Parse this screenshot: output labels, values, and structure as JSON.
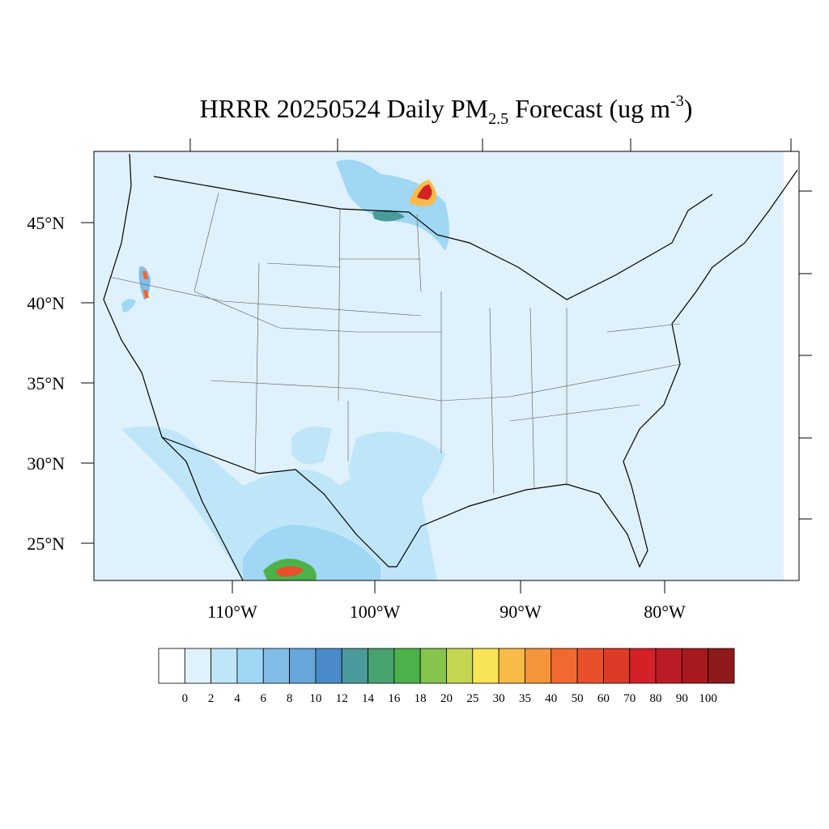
{
  "title": {
    "main": "HRRR 20250524 Daily PM",
    "subscript": "2.5",
    "middle": " Forecast (ug m",
    "superscript": "-3",
    "end": ")"
  },
  "latitude_labels": [
    "45°N",
    "40°N",
    "35°N",
    "30°N",
    "25°N"
  ],
  "longitude_labels": [
    "110°W",
    "100°W",
    "90°W",
    "80°W"
  ],
  "colorbar": {
    "levels": [
      0,
      2,
      4,
      6,
      8,
      10,
      12,
      14,
      16,
      18,
      20,
      25,
      30,
      35,
      40,
      50,
      60,
      70,
      80,
      90,
      100
    ],
    "colors": [
      "#ffffff",
      "#dff1fb",
      "#bfe6f8",
      "#9fd7f4",
      "#81bde6",
      "#66a6da",
      "#4a8ac8",
      "#4a9a9c",
      "#46a26e",
      "#4bb24a",
      "#86c44d",
      "#c4d552",
      "#f9e457",
      "#f8bb48",
      "#f5953b",
      "#f1692e",
      "#e8502b",
      "#dd3a27",
      "#d42128",
      "#bc1c25",
      "#a81a1f",
      "#8f1a1b"
    ]
  }
}
